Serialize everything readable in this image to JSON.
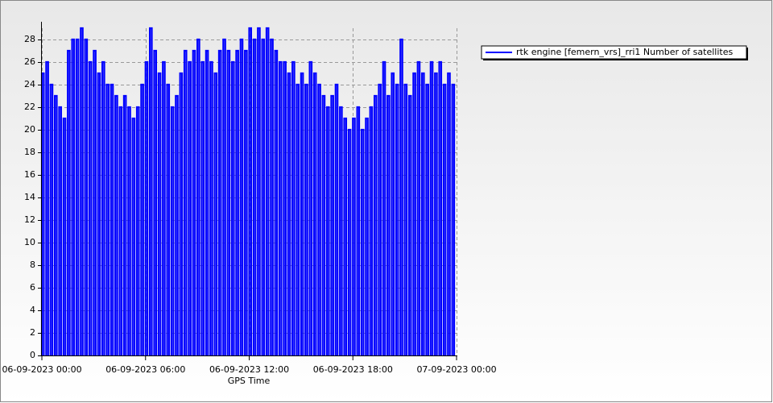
{
  "chart_data": {
    "type": "line",
    "x_label": "GPS Time",
    "x": [
      "06-09-2023 00:00",
      "06-09-2023 00:15",
      "06-09-2023 00:30",
      "06-09-2023 00:45",
      "06-09-2023 01:00",
      "06-09-2023 01:15",
      "06-09-2023 01:30",
      "06-09-2023 01:45",
      "06-09-2023 02:00",
      "06-09-2023 02:15",
      "06-09-2023 02:30",
      "06-09-2023 02:45",
      "06-09-2023 03:00",
      "06-09-2023 03:15",
      "06-09-2023 03:30",
      "06-09-2023 03:45",
      "06-09-2023 04:00",
      "06-09-2023 04:15",
      "06-09-2023 04:30",
      "06-09-2023 04:45",
      "06-09-2023 05:00",
      "06-09-2023 05:15",
      "06-09-2023 05:30",
      "06-09-2023 05:45",
      "06-09-2023 06:00",
      "06-09-2023 06:15",
      "06-09-2023 06:30",
      "06-09-2023 06:45",
      "06-09-2023 07:00",
      "06-09-2023 07:15",
      "06-09-2023 07:30",
      "06-09-2023 07:45",
      "06-09-2023 08:00",
      "06-09-2023 08:15",
      "06-09-2023 08:30",
      "06-09-2023 08:45",
      "06-09-2023 09:00",
      "06-09-2023 09:15",
      "06-09-2023 09:30",
      "06-09-2023 09:45",
      "06-09-2023 10:00",
      "06-09-2023 10:15",
      "06-09-2023 10:30",
      "06-09-2023 10:45",
      "06-09-2023 11:00",
      "06-09-2023 11:15",
      "06-09-2023 11:30",
      "06-09-2023 11:45",
      "06-09-2023 12:00",
      "06-09-2023 12:15",
      "06-09-2023 12:30",
      "06-09-2023 12:45",
      "06-09-2023 13:00",
      "06-09-2023 13:15",
      "06-09-2023 13:30",
      "06-09-2023 13:45",
      "06-09-2023 14:00",
      "06-09-2023 14:15",
      "06-09-2023 14:30",
      "06-09-2023 14:45",
      "06-09-2023 15:00",
      "06-09-2023 15:15",
      "06-09-2023 15:30",
      "06-09-2023 15:45",
      "06-09-2023 16:00",
      "06-09-2023 16:15",
      "06-09-2023 16:30",
      "06-09-2023 16:45",
      "06-09-2023 17:00",
      "06-09-2023 17:15",
      "06-09-2023 17:30",
      "06-09-2023 17:45",
      "06-09-2023 18:00",
      "06-09-2023 18:15",
      "06-09-2023 18:30",
      "06-09-2023 18:45",
      "06-09-2023 19:00",
      "06-09-2023 19:15",
      "06-09-2023 19:30",
      "06-09-2023 19:45",
      "06-09-2023 20:00",
      "06-09-2023 20:15",
      "06-09-2023 20:30",
      "06-09-2023 20:45",
      "06-09-2023 21:00",
      "06-09-2023 21:15",
      "06-09-2023 21:30",
      "06-09-2023 21:45",
      "06-09-2023 22:00",
      "06-09-2023 22:15",
      "06-09-2023 22:30",
      "06-09-2023 22:45",
      "06-09-2023 23:00",
      "06-09-2023 23:15",
      "06-09-2023 23:30",
      "06-09-2023 23:45"
    ],
    "series": [
      {
        "name": "rtk engine [femern_vrs]_rri1 Number of satellites",
        "color": "#0000ff",
        "values": [
          25,
          26,
          24,
          23,
          22,
          21,
          27,
          28,
          28,
          29,
          28,
          26,
          27,
          25,
          26,
          24,
          24,
          23,
          22,
          23,
          22,
          21,
          22,
          24,
          26,
          29,
          27,
          25,
          26,
          24,
          22,
          23,
          25,
          27,
          26,
          27,
          28,
          26,
          27,
          26,
          25,
          27,
          28,
          27,
          26,
          27,
          28,
          27,
          29,
          28,
          29,
          28,
          29,
          28,
          27,
          26,
          26,
          25,
          26,
          24,
          25,
          24,
          26,
          25,
          24,
          23,
          22,
          23,
          24,
          22,
          21,
          20,
          21,
          22,
          20,
          21,
          22,
          23,
          24,
          26,
          23,
          25,
          24,
          28,
          24,
          23,
          25,
          26,
          25,
          24,
          26,
          25,
          26,
          24,
          25,
          24
        ]
      }
    ],
    "xlim": [
      "06-09-2023 00:00",
      "07-09-2023 00:00"
    ],
    "xticks": [
      "06-09-2023 00:00",
      "06-09-2023 06:00",
      "06-09-2023 12:00",
      "06-09-2023 18:00",
      "07-09-2023 00:00"
    ],
    "ylim": [
      0,
      29
    ],
    "yticks": [
      0,
      2,
      4,
      6,
      8,
      10,
      12,
      14,
      16,
      18,
      20,
      22,
      24,
      26,
      28
    ],
    "grid": true,
    "legend": "right"
  }
}
